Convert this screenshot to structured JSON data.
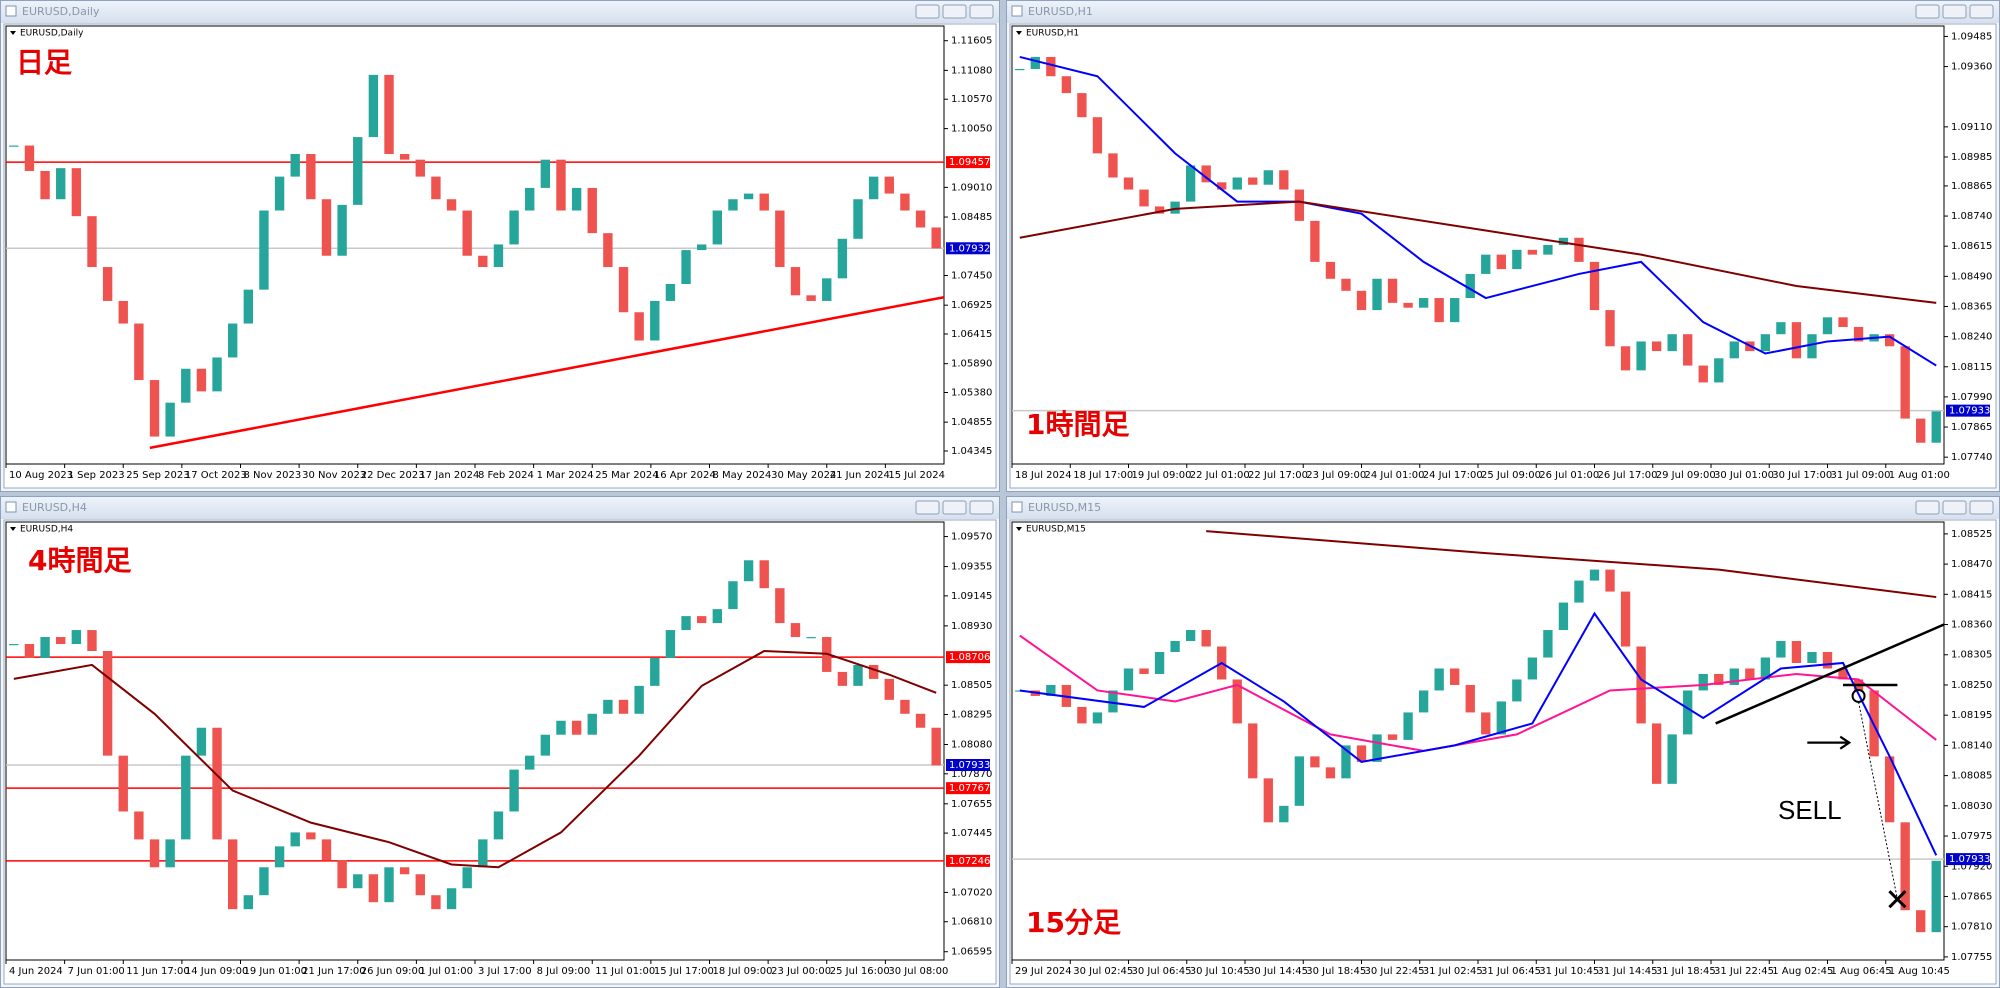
{
  "chart_data": [
    {
      "type": "candlestick",
      "title": "EURUSD,Daily",
      "label": "日足",
      "up_color": "#26a69a",
      "down_color": "#ef5350",
      "values": [
        1.0975,
        1.093,
        1.088,
        1.0935,
        1.085,
        1.076,
        1.07,
        1.066,
        1.056,
        1.046,
        1.052,
        1.058,
        1.054,
        1.06,
        1.066,
        1.072,
        1.086,
        1.092,
        1.096,
        1.088,
        1.078,
        1.087,
        1.099,
        1.11,
        1.096,
        1.095,
        1.092,
        1.088,
        1.086,
        1.078,
        1.076,
        1.08,
        1.086,
        1.09,
        1.095,
        1.086,
        1.09,
        1.082,
        1.076,
        1.068,
        1.063,
        1.07,
        1.073,
        1.079,
        1.08,
        1.086,
        1.088,
        1.089,
        1.086,
        1.076,
        1.071,
        1.07,
        1.074,
        1.081,
        1.088,
        1.092,
        1.089,
        1.086,
        1.083,
        1.0793
      ],
      "x_labels": [
        "10 Aug 2023",
        "1 Sep 2023",
        "25 Sep 2023",
        "17 Oct 2023",
        "8 Nov 2023",
        "30 Nov 2023",
        "22 Dec 2023",
        "17 Jan 2024",
        "8 Feb 2024",
        "1 Mar 2024",
        "25 Mar 2024",
        "16 Apr 2024",
        "8 May 2024",
        "30 May 2024",
        "21 Jun 2024",
        "15 Jul 2024"
      ],
      "ylim": [
        1.0415,
        1.1183
      ],
      "yticks": [
        1.11605,
        {
          "value": 1.1108,
          "label": "1.11080"
        },
        {
          "value": 1.1057,
          "label": "1.10570"
        },
        {
          "value": 1.1005,
          "label": "1.10050"
        },
        {
          "value": 1.0901,
          "label": "1.09010"
        },
        1.08485,
        {
          "value": 1.0745,
          "label": "1.07450"
        },
        1.06925,
        1.06415,
        {
          "value": 1.0589,
          "label": "1.05890"
        },
        {
          "value": 1.0538,
          "label": "1.05380"
        },
        1.04855,
        1.04345
      ],
      "lines": [],
      "hlines": [
        {
          "value": 1.09457,
          "color": "#ff0000"
        },
        {
          "value": 1.07932,
          "color": "#c8c8c8"
        }
      ],
      "trendlines": [
        {
          "x": [
            8.7,
            59.5
          ],
          "values": [
            1.044,
            1.07066
          ],
          "color": "#ff0000"
        }
      ],
      "price_tags": [
        {
          "value": 1.09457,
          "color": "#ff0000"
        },
        {
          "value": 1.07932,
          "color": "#0000cc"
        }
      ],
      "markers": [],
      "annotations": []
    },
    {
      "type": "candlestick",
      "title": "EURUSD,H1",
      "label": "1時間足",
      "up_color": "#26a69a",
      "down_color": "#ef5350",
      "values": [
        1.0935,
        1.094,
        1.0932,
        1.0925,
        1.0915,
        1.09,
        1.089,
        1.0885,
        1.0878,
        1.0875,
        1.088,
        1.0895,
        1.0888,
        1.0885,
        1.089,
        1.0887,
        1.0893,
        1.0885,
        1.0872,
        1.0855,
        1.0848,
        1.0843,
        1.0835,
        1.0848,
        1.0838,
        1.0836,
        1.084,
        1.083,
        1.084,
        1.085,
        1.0858,
        1.0852,
        1.086,
        1.0858,
        1.0862,
        1.0865,
        1.0855,
        1.0835,
        1.082,
        1.081,
        1.0822,
        1.0818,
        1.0825,
        1.0812,
        1.0805,
        1.0815,
        1.0822,
        1.0818,
        1.0825,
        1.083,
        1.0815,
        1.0825,
        1.0832,
        1.0828,
        1.0822,
        1.0825,
        1.082,
        1.079,
        1.078,
        1.0793
      ],
      "x_labels": [
        "18 Jul 2024",
        "18 Jul 17:00",
        "19 Jul 09:00",
        "22 Jul 01:00",
        "22 Jul 17:00",
        "23 Jul 09:00",
        "24 Jul 01:00",
        "24 Jul 17:00",
        "25 Jul 09:00",
        "26 Jul 01:00",
        "26 Jul 17:00",
        "29 Jul 09:00",
        "30 Jul 01:00",
        "30 Jul 17:00",
        "31 Jul 09:00",
        "1 Aug 01:00"
      ],
      "ylim": [
        1.0772,
        1.0952
      ],
      "yticks": [
        1.09485,
        {
          "value": 1.0936,
          "label": "1.09360"
        },
        {
          "value": 1.0911,
          "label": "1.09110"
        },
        1.08985,
        1.08865,
        {
          "value": 1.0874,
          "label": "1.08740"
        },
        1.08615,
        {
          "value": 1.0849,
          "label": "1.08490"
        },
        1.08365,
        {
          "value": 1.0824,
          "label": "1.08240"
        },
        1.08115,
        {
          "value": 1.0799,
          "label": "1.07990"
        },
        1.07865,
        {
          "value": 1.0774,
          "label": "1.07740"
        }
      ],
      "lines": [
        {
          "color": "#0000ff",
          "x": [
            0,
            5,
            10,
            14,
            18,
            22,
            26,
            30,
            36,
            40,
            44,
            48,
            52,
            56,
            59
          ],
          "values": [
            1.094,
            1.0932,
            1.09,
            1.088,
            1.088,
            1.0875,
            1.0855,
            1.084,
            1.085,
            1.0855,
            1.083,
            1.0817,
            1.0822,
            1.0824,
            1.0812
          ]
        },
        {
          "color": "#800000",
          "x": [
            0,
            10,
            18,
            30,
            40,
            50,
            59
          ],
          "values": [
            1.0865,
            1.0877,
            1.088,
            1.0868,
            1.0858,
            1.0845,
            1.0838
          ]
        }
      ],
      "hlines": [
        {
          "value": 1.07933,
          "color": "#c8c8c8"
        }
      ],
      "trendlines": [],
      "price_tags": [
        {
          "value": 1.07933,
          "color": "#0000cc"
        }
      ],
      "markers": [],
      "annotations": []
    },
    {
      "type": "candlestick",
      "title": "EURUSD,H4",
      "label": "4時間足",
      "up_color": "#26a69a",
      "down_color": "#ef5350",
      "values": [
        1.088,
        1.087,
        1.0885,
        1.088,
        1.089,
        1.0875,
        1.08,
        1.076,
        1.074,
        1.072,
        1.074,
        1.08,
        1.082,
        1.074,
        1.069,
        1.07,
        1.072,
        1.0735,
        1.0745,
        1.074,
        1.0725,
        1.0705,
        1.0715,
        1.0695,
        1.072,
        1.0715,
        1.07,
        1.069,
        1.0705,
        1.072,
        1.074,
        1.076,
        1.079,
        1.08,
        1.0815,
        1.0825,
        1.0815,
        1.083,
        1.084,
        1.083,
        1.085,
        1.087,
        1.089,
        1.09,
        1.0895,
        1.0905,
        1.0925,
        1.094,
        1.092,
        1.0895,
        1.0885,
        1.0885,
        1.086,
        1.085,
        1.0865,
        1.0855,
        1.084,
        1.083,
        1.082,
        1.0793
      ],
      "x_labels": [
        "4 Jun 2024",
        "7 Jun 01:00",
        "11 Jun 17:00",
        "14 Jun 09:00",
        "19 Jun 01:00",
        "21 Jun 17:00",
        "26 Jun 09:00",
        "1 Jul 01:00",
        "3 Jul 17:00",
        "8 Jul 09:00",
        "11 Jul 01:00",
        "15 Jul 17:00",
        "18 Jul 09:00",
        "23 Jul 00:00",
        "25 Jul 16:00",
        "30 Jul 08:00"
      ],
      "ylim": [
        1.0655,
        1.0966
      ],
      "yticks": [
        {
          "value": 1.0957,
          "label": "1.09570"
        },
        1.09355,
        1.09145,
        {
          "value": 1.0893,
          "label": "1.08930"
        },
        1.08505,
        1.08295,
        {
          "value": 1.0808,
          "label": "1.08080"
        },
        {
          "value": 1.0787,
          "label": "1.07870"
        },
        1.07655,
        1.07445,
        {
          "value": 1.0702,
          "label": "1.07020"
        },
        {
          "value": 1.0681,
          "label": "1.06810"
        },
        1.06595
      ],
      "lines": [
        {
          "color": "#800000",
          "x": [
            0,
            5,
            9,
            14,
            19,
            24,
            28,
            31,
            35,
            40,
            44,
            48,
            52,
            56,
            59
          ],
          "values": [
            1.0855,
            1.0865,
            1.083,
            1.0775,
            1.0752,
            1.0738,
            1.0722,
            1.072,
            1.0745,
            1.08,
            1.085,
            1.0875,
            1.0873,
            1.0858,
            1.0845
          ]
        }
      ],
      "hlines": [
        {
          "value": 1.08706,
          "color": "#ff0000"
        },
        {
          "value": 1.07767,
          "color": "#ff0000"
        },
        {
          "value": 1.07246,
          "color": "#ff0000"
        },
        {
          "value": 1.07933,
          "color": "#c8c8c8"
        }
      ],
      "trendlines": [],
      "price_tags": [
        {
          "value": 1.08706,
          "color": "#ff0000"
        },
        {
          "value": 1.07933,
          "color": "#0000cc"
        },
        {
          "value": 1.07767,
          "color": "#ff0000"
        },
        {
          "value": 1.07246,
          "color": "#ff0000"
        }
      ],
      "markers": [],
      "annotations": []
    },
    {
      "type": "candlestick",
      "title": "EURUSD,M15",
      "label": "15分足",
      "up_color": "#26a69a",
      "down_color": "#ef5350",
      "values": [
        1.0824,
        1.0823,
        1.0825,
        1.0821,
        1.0818,
        1.082,
        1.0824,
        1.0828,
        1.0827,
        1.0831,
        1.0833,
        1.0835,
        1.0832,
        1.0826,
        1.0818,
        1.0808,
        1.08,
        1.0803,
        1.0812,
        1.081,
        1.0808,
        1.0814,
        1.0811,
        1.0816,
        1.0815,
        1.082,
        1.0824,
        1.0828,
        1.0825,
        1.082,
        1.0816,
        1.0822,
        1.0826,
        1.083,
        1.0835,
        1.084,
        1.0844,
        1.0846,
        1.0842,
        1.0832,
        1.0818,
        1.0807,
        1.0816,
        1.0824,
        1.0827,
        1.0825,
        1.0828,
        1.0826,
        1.083,
        1.0833,
        1.0829,
        1.0831,
        1.0828,
        1.0826,
        1.0824,
        1.0812,
        1.08,
        1.0784,
        1.078,
        1.0793
      ],
      "x_labels": [
        "29 Jul 2024",
        "30 Jul 02:45",
        "30 Jul 06:45",
        "30 Jul 10:45",
        "30 Jul 14:45",
        "30 Jul 18:45",
        "30 Jul 22:45",
        "31 Jul 02:45",
        "31 Jul 06:45",
        "31 Jul 10:45",
        "31 Jul 14:45",
        "31 Jul 18:45",
        "31 Jul 22:45",
        "1 Aug 02:45",
        "1 Aug 06:45",
        "1 Aug 10:45"
      ],
      "ylim": [
        1.07753,
        1.08543
      ],
      "yticks": [
        1.08525,
        {
          "value": 1.0847,
          "label": "1.08470"
        },
        1.08415,
        {
          "value": 1.0836,
          "label": "1.08360"
        },
        1.08305,
        {
          "value": 1.0825,
          "label": "1.08250"
        },
        1.08195,
        {
          "value": 1.0814,
          "label": "1.08140"
        },
        1.08085,
        {
          "value": 1.0803,
          "label": "1.08030"
        },
        1.07975,
        {
          "value": 1.0792,
          "label": "1.07920"
        },
        1.07865,
        {
          "value": 1.0781,
          "label": "1.07810"
        },
        1.07755
      ],
      "lines": [
        {
          "color": "#800000",
          "x": [
            12,
            30,
            45,
            59
          ],
          "values": [
            1.0853,
            1.0849,
            1.0846,
            1.0841
          ]
        },
        {
          "color": "#ff1493",
          "x": [
            0,
            5,
            10,
            14,
            20,
            26,
            32,
            38,
            44,
            50,
            54,
            59
          ],
          "values": [
            1.0834,
            1.0824,
            1.0822,
            1.0825,
            1.0816,
            1.0813,
            1.0816,
            1.0824,
            1.0825,
            1.0827,
            1.0826,
            1.0815
          ]
        },
        {
          "color": "#0000ff",
          "x": [
            0,
            8,
            13,
            17,
            22,
            28,
            33,
            37,
            40,
            44,
            49,
            53,
            56,
            59
          ],
          "values": [
            1.0824,
            1.0821,
            1.0829,
            1.0822,
            1.0811,
            1.0814,
            1.0818,
            1.0838,
            1.0826,
            1.0819,
            1.0828,
            1.0829,
            1.0812,
            1.0794
          ]
        }
      ],
      "hlines": [
        {
          "value": 1.07933,
          "color": "#c8c8c8"
        }
      ],
      "trendlines": [
        {
          "x": [
            44.8,
            59.5
          ],
          "values": [
            1.0818,
            1.0836
          ],
          "color": "#000000"
        },
        {
          "x": [
            53,
            56.5
          ],
          "values": [
            1.0825,
            1.0825
          ],
          "color": "#000000"
        }
      ],
      "price_tags": [
        {
          "value": 1.07933,
          "color": "#0000cc"
        }
      ],
      "markers": [
        {
          "type": "circle",
          "x": 54,
          "value": 1.0823
        },
        {
          "type": "arrow",
          "x": [
            50.7,
            53.4
          ],
          "value": 1.08145
        },
        {
          "type": "cross",
          "x": 56.5,
          "value": 1.0786
        }
      ],
      "annotations": [
        {
          "text": "SELL"
        }
      ]
    }
  ]
}
